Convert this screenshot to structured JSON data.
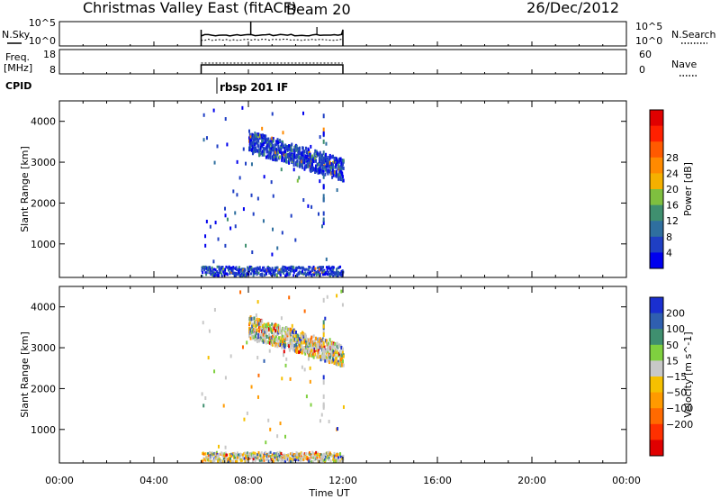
{
  "header": {
    "station": "Christmas Valley East (fitACF)",
    "beam": "Beam 20",
    "date": "26/Dec/2012"
  },
  "control_panel": {
    "nsky_label": "N.Sky",
    "nsearch_label": "N.Search",
    "freq_label_line1": "Freq.",
    "freq_label_line2": "[MHz]",
    "nave_label": "Nave",
    "cpid_label": "CPID",
    "cpid_value": "rbsp 201 IF",
    "noise_ticks_left": [
      "10^5",
      "10^0"
    ],
    "noise_ticks_right": [
      "10^5",
      "10^0"
    ],
    "freq_ticks": [
      "18",
      "8"
    ],
    "nave_ticks": [
      "60",
      "0"
    ]
  },
  "time_axis": {
    "label": "Time UT",
    "ticks": [
      "00:00",
      "04:00",
      "08:00",
      "12:00",
      "16:00",
      "20:00",
      "00:00"
    ]
  },
  "colorbar_power": {
    "label": "Power [dB]",
    "ticks": [
      "4",
      "8",
      "12",
      "16",
      "20",
      "24",
      "28"
    ],
    "colors": [
      "#0000ee",
      "#1f3fc4",
      "#2f6f9f",
      "#3f8f6f",
      "#7fbf3f",
      "#f5b000",
      "#ff8a00",
      "#ff5a00",
      "#ff2000",
      "#e00000"
    ]
  },
  "colorbar_velocity": {
    "label": "Velocity [m s^-1]",
    "ticks": [
      "200",
      "100",
      "50",
      "15",
      "-15",
      "-50",
      "-100",
      "-200"
    ],
    "colors": [
      "#1a2fd0",
      "#2f5fb0",
      "#3f8f6f",
      "#7fd03f",
      "#c8c8c8",
      "#f5c000",
      "#ff9a00",
      "#ff6a00",
      "#ff3000",
      "#e00000"
    ]
  },
  "chart_data": [
    {
      "type": "heatmap",
      "panel": "power",
      "ylabel": "Slant Range [km]",
      "xlabel": "",
      "ylim": [
        180,
        4500
      ],
      "yticks": [
        "1000",
        "2000",
        "3000",
        "4000"
      ],
      "xlim": [
        "00:00",
        "24:00"
      ],
      "data_interval_hours": [
        6.0,
        12.0
      ],
      "echo_band": {
        "start_hour": 8.0,
        "end_hour": 12.0,
        "range_start_km": 3500,
        "range_end_km": 2800
      },
      "typical_power_db": 6
    },
    {
      "type": "heatmap",
      "panel": "velocity",
      "ylabel": "Slant Range [km]",
      "xlabel": "Time UT",
      "ylim": [
        180,
        4500
      ],
      "yticks": [
        "1000",
        "2000",
        "3000",
        "4000"
      ],
      "xlim": [
        "00:00",
        "24:00"
      ],
      "data_interval_hours": [
        6.0,
        12.0
      ],
      "echo_band": {
        "start_hour": 8.0,
        "end_hour": 12.0,
        "range_start_km": 3500,
        "range_end_km": 2800
      },
      "typical_velocity_ms": 0
    }
  ]
}
